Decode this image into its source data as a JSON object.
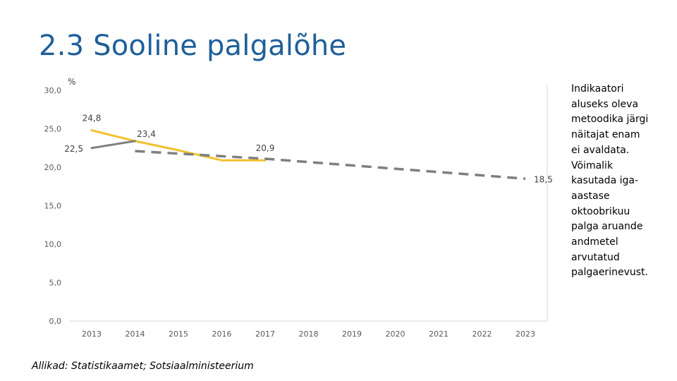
{
  "title": "2.3 Sooline palgalõhe",
  "side_note": [
    "Indikaatori",
    "aluseks oleva",
    "metoodika järgi",
    "näitajat enam",
    "ei avaldata.",
    "Võimalik",
    "kasutada iga-",
    "aastase",
    "oktoobrikuu",
    "palga aruande",
    "andmetel",
    "arvutatud",
    "palgaerinevust."
  ],
  "source": "Allikad: Statistikaamet; Sotsiaalministeerium",
  "colors": {
    "title": "#1f5f99",
    "actual": "#f2c12e",
    "forecast": "#7f7f7f",
    "axis": "#d9d9d9"
  },
  "chart_data": {
    "type": "line",
    "title": "",
    "unit_label": "%",
    "xlabel": "",
    "ylabel": "",
    "x": [
      2013,
      2014,
      2015,
      2016,
      2017,
      2018,
      2019,
      2020,
      2021,
      2022,
      2023
    ],
    "y_ticks": [
      "0,0",
      "5,0",
      "10,0",
      "15,0",
      "20,0",
      "25,0",
      "30,0"
    ],
    "ylim": [
      0,
      30
    ],
    "grid": false,
    "legend": "none",
    "series": [
      {
        "style": "solid",
        "color": "#f2c12e",
        "points": [
          {
            "x": 2013,
            "y": 24.8
          },
          {
            "x": 2014,
            "y": 23.4
          },
          {
            "x": 2015,
            "y": 22.2
          },
          {
            "x": 2016,
            "y": 20.9
          },
          {
            "x": 2017,
            "y": 20.9
          }
        ]
      },
      {
        "style": "solid",
        "color": "#7f7f7f",
        "points": [
          {
            "x": 2013,
            "y": 22.5
          },
          {
            "x": 2014,
            "y": 23.4
          }
        ]
      },
      {
        "style": "dashed",
        "color": "#7f7f7f",
        "points": [
          {
            "x": 2014,
            "y": 22.1
          },
          {
            "x": 2017,
            "y": 21.1
          },
          {
            "x": 2023,
            "y": 18.5
          }
        ]
      }
    ],
    "data_labels": [
      {
        "text": "24,8",
        "x": 2013,
        "y": 24.8,
        "pos": "above"
      },
      {
        "text": "22,5",
        "x": 2013,
        "y": 22.5,
        "pos": "left"
      },
      {
        "text": "23,4",
        "x": 2014,
        "y": 23.4,
        "pos": "above-right"
      },
      {
        "text": "20,9",
        "x": 2017,
        "y": 20.9,
        "pos": "above"
      },
      {
        "text": "18,5",
        "x": 2023,
        "y": 18.5,
        "pos": "right"
      }
    ]
  }
}
